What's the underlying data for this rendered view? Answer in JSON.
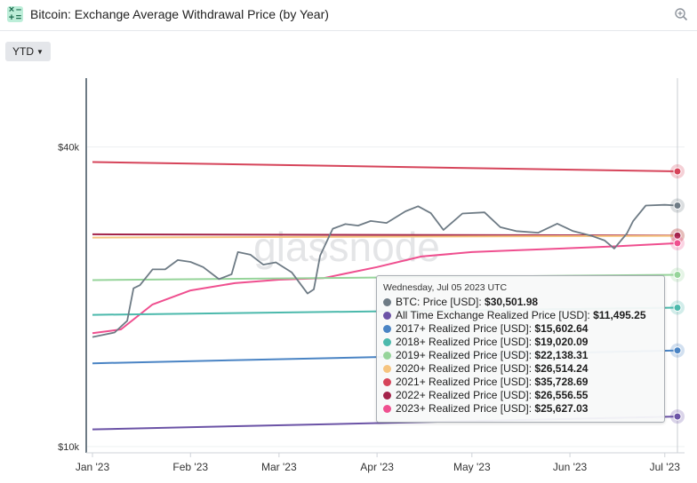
{
  "header": {
    "title": "Bitcoin: Exchange Average Withdrawal Price (by Year)"
  },
  "toolbar": {
    "range_label": "YTD"
  },
  "tooltip": {
    "date": "Wednesday, Jul 05 2023 UTC",
    "rows": [
      {
        "label": "BTC: Price [USD]:",
        "value": "$30,501.98",
        "color": "#6e7b85"
      },
      {
        "label": "All Time Exchange Realized Price [USD]:",
        "value": "$11,495.25",
        "color": "#6b53a6"
      },
      {
        "label": "2017+ Realized Price [USD]:",
        "value": "$15,602.64",
        "color": "#4a84c4"
      },
      {
        "label": "2018+ Realized Price [USD]:",
        "value": "$19,020.09",
        "color": "#4cb9ac"
      },
      {
        "label": "2019+ Realized Price [USD]:",
        "value": "$22,138.31",
        "color": "#96d49a"
      },
      {
        "label": "2020+ Realized Price [USD]:",
        "value": "$26,514.24",
        "color": "#f6c47f"
      },
      {
        "label": "2021+ Realized Price [USD]:",
        "value": "$35,728.69",
        "color": "#d6445a"
      },
      {
        "label": "2022+ Realized Price [USD]:",
        "value": "$26,556.55",
        "color": "#a3234a"
      },
      {
        "label": "2023+ Realized Price [USD]:",
        "value": "$25,627.03",
        "color": "#ef4f8f"
      }
    ]
  },
  "chart_data": {
    "type": "line",
    "watermark": "glassnode",
    "x_range": [
      "2023-01-01",
      "2023-07-05"
    ],
    "x_ticks": [
      "Jan '23",
      "Feb '23",
      "Mar '23",
      "Apr '23",
      "May '23",
      "Jun '23",
      "Jul '23"
    ],
    "y_scale": "log",
    "y_range": [
      10000,
      55000
    ],
    "y_ticks": [
      {
        "value": 10000,
        "label": "$10k"
      },
      {
        "value": 40000,
        "label": "$40k"
      }
    ],
    "series": [
      {
        "name": "BTC: Price [USD]",
        "color": "#6e7b85",
        "x": [
          "2023-01-01",
          "2023-01-08",
          "2023-01-12",
          "2023-01-14",
          "2023-01-16",
          "2023-01-20",
          "2023-01-24",
          "2023-01-28",
          "2023-02-01",
          "2023-02-05",
          "2023-02-10",
          "2023-02-14",
          "2023-02-16",
          "2023-02-20",
          "2023-02-24",
          "2023-02-28",
          "2023-03-05",
          "2023-03-10",
          "2023-03-12",
          "2023-03-14",
          "2023-03-18",
          "2023-03-22",
          "2023-03-26",
          "2023-03-30",
          "2023-04-04",
          "2023-04-10",
          "2023-04-14",
          "2023-04-18",
          "2023-04-22",
          "2023-04-28",
          "2023-05-05",
          "2023-05-10",
          "2023-05-15",
          "2023-05-22",
          "2023-05-28",
          "2023-06-02",
          "2023-06-08",
          "2023-06-12",
          "2023-06-15",
          "2023-06-19",
          "2023-06-21",
          "2023-06-25",
          "2023-07-01",
          "2023-07-05"
        ],
        "values": [
          16600,
          16950,
          17900,
          20800,
          21100,
          22700,
          22700,
          23700,
          23500,
          22950,
          21700,
          22200,
          24600,
          24300,
          23200,
          23450,
          22400,
          20300,
          20700,
          24200,
          27400,
          28000,
          27800,
          28400,
          28150,
          29700,
          30400,
          29450,
          27250,
          29400,
          29550,
          27600,
          27100,
          26900,
          28050,
          27100,
          26500,
          25950,
          25000,
          26800,
          28400,
          30500,
          30600,
          30500
        ]
      },
      {
        "name": "All Time Exchange Realized Price [USD]",
        "color": "#6b53a6",
        "x": [
          "2023-01-01",
          "2023-07-05"
        ],
        "values": [
          10830,
          11495
        ]
      },
      {
        "name": "2017+ Realized Price [USD]",
        "color": "#4a84c4",
        "x": [
          "2023-01-01",
          "2023-07-05"
        ],
        "values": [
          14700,
          15603
        ]
      },
      {
        "name": "2018+ Realized Price [USD]",
        "color": "#4cb9ac",
        "x": [
          "2023-01-01",
          "2023-07-05"
        ],
        "values": [
          18400,
          19020
        ]
      },
      {
        "name": "2019+ Realized Price [USD]",
        "color": "#96d49a",
        "x": [
          "2023-01-01",
          "2023-07-05"
        ],
        "values": [
          21600,
          22138
        ]
      },
      {
        "name": "2020+ Realized Price [USD]",
        "color": "#f6c47f",
        "x": [
          "2023-01-01",
          "2023-07-05"
        ],
        "values": [
          26300,
          26514
        ]
      },
      {
        "name": "2021+ Realized Price [USD]",
        "color": "#d6445a",
        "x": [
          "2023-01-01",
          "2023-07-05"
        ],
        "values": [
          37300,
          35729
        ]
      },
      {
        "name": "2022+ Realized Price [USD]",
        "color": "#a3234a",
        "x": [
          "2023-01-01",
          "2023-07-05"
        ],
        "values": [
          26700,
          26557
        ]
      },
      {
        "name": "2023+ Realized Price [USD]",
        "color": "#ef4f8f",
        "x": [
          "2023-01-01",
          "2023-01-10",
          "2023-01-20",
          "2023-02-01",
          "2023-02-15",
          "2023-03-01",
          "2023-03-15",
          "2023-04-01",
          "2023-04-15",
          "2023-05-01",
          "2023-05-15",
          "2023-06-01",
          "2023-06-15",
          "2023-07-05"
        ],
        "values": [
          16900,
          17200,
          19300,
          20600,
          21300,
          21650,
          21800,
          22950,
          24100,
          24600,
          24800,
          25050,
          25250,
          25627
        ]
      }
    ]
  }
}
